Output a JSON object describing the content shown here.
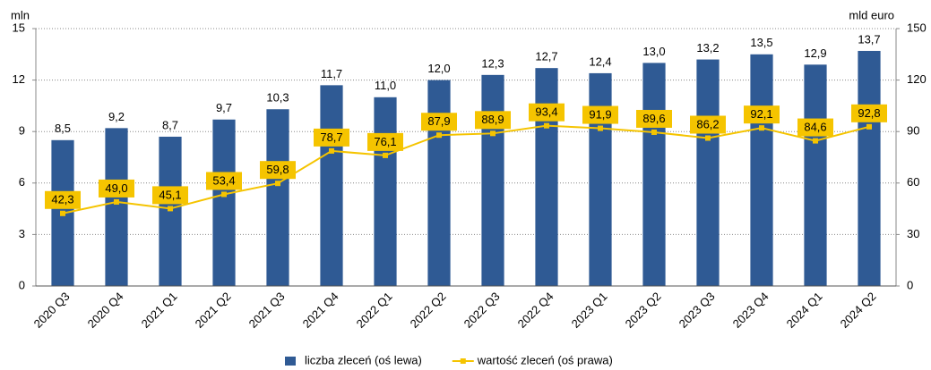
{
  "chart_data": {
    "type": "bar",
    "y_label": "mln",
    "y2_label": "mld euro",
    "categories": [
      "2020 Q3",
      "2020 Q4",
      "2021 Q1",
      "2021 Q2",
      "2021 Q3",
      "2021 Q4",
      "2022 Q1",
      "2022 Q2",
      "2022 Q3",
      "2022 Q4",
      "2023 Q1",
      "2023 Q2",
      "2023 Q3",
      "2023 Q4",
      "2024 Q1",
      "2024 Q2"
    ],
    "series": [
      {
        "name": "liczba zleceń (oś lewa)",
        "color": "#2f5a94",
        "type": "bar",
        "axis": "y",
        "values": [
          8.5,
          9.2,
          8.7,
          9.7,
          10.3,
          11.7,
          11.0,
          12.0,
          12.3,
          12.7,
          12.4,
          13.0,
          13.2,
          13.5,
          12.9,
          13.7
        ],
        "value_labels": [
          "8,5",
          "9,2",
          "8,7",
          "9,7",
          "10,3",
          "11,7",
          "11,0",
          "12,0",
          "12,3",
          "12,7",
          "12,4",
          "13,0",
          "13,2",
          "13,5",
          "12,9",
          "13,7"
        ]
      },
      {
        "name": "wartość zleceń (oś prawa)",
        "color": "#f5c400",
        "type": "line",
        "axis": "y2",
        "values": [
          42.3,
          49.0,
          45.1,
          53.4,
          59.8,
          78.7,
          76.1,
          87.9,
          88.9,
          93.4,
          91.9,
          89.6,
          86.2,
          92.1,
          84.6,
          92.8
        ],
        "value_labels": [
          "42,3",
          "49,0",
          "45,1",
          "53,4",
          "59,8",
          "78,7",
          "76,1",
          "87,9",
          "88,9",
          "93,4",
          "91,9",
          "89,6",
          "86,2",
          "92,1",
          "84,6",
          "92,8"
        ]
      }
    ],
    "ylim": [
      0,
      15
    ],
    "yticks": [
      0,
      3,
      6,
      9,
      12,
      15
    ],
    "y2lim": [
      0,
      150
    ],
    "y2ticks": [
      0,
      30,
      60,
      90,
      120,
      150
    ],
    "grid": true,
    "legend": "bottom"
  }
}
